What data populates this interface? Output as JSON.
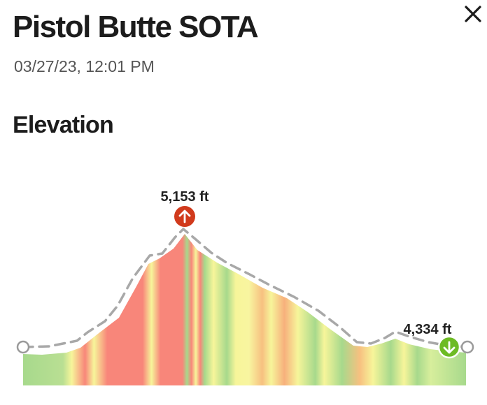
{
  "header": {
    "title": "Pistol Butte SOTA",
    "timestamp": "03/27/23, 12:01 PM",
    "close_icon": "close-icon"
  },
  "elevation": {
    "section_title": "Elevation",
    "max_label": "5,153 ft",
    "min_label": "4,334 ft",
    "max_marker_icon": "arrow-up-icon",
    "min_marker_icon": "arrow-down-icon",
    "max_marker_color": "#d13a1c",
    "min_marker_color": "#6dbb24",
    "gradient_colors": {
      "red": "#f8867a",
      "yellow": "#f7f59a",
      "green": "#a7d98c"
    }
  }
}
